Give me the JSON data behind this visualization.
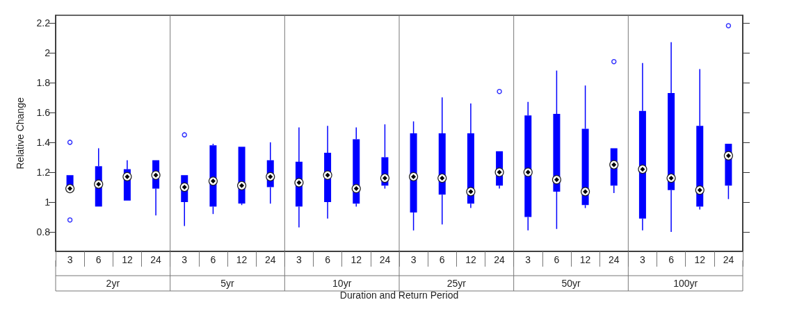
{
  "chart_data": {
    "type": "box",
    "ylabel": "Relative Change",
    "xlabel": "Duration and Return Period",
    "categories": [
      "3",
      "6",
      "12",
      "24",
      "3",
      "6",
      "12",
      "24",
      "3",
      "6",
      "12",
      "24",
      "3",
      "6",
      "12",
      "24",
      "3",
      "6",
      "12",
      "24",
      "3",
      "6",
      "12",
      "24"
    ],
    "annotations": [
      "2yr",
      "5yr",
      "10yr",
      "25yr",
      "50yr",
      "100yr"
    ],
    "ylim": [
      0.67,
      2.25
    ],
    "yticks": [
      0.8,
      1,
      1.2,
      1.4,
      1.6,
      1.8,
      2,
      2.2
    ],
    "grid": false,
    "series": [
      {
        "color": "#0000ff",
        "boxes": [
          {
            "low": 1.08,
            "q1": 1.08,
            "median": 1.09,
            "q3": 1.18,
            "high": 1.18,
            "outliers": [
              1.4,
              0.88
            ]
          },
          {
            "low": 0.97,
            "q1": 0.97,
            "median": 1.12,
            "q3": 1.24,
            "high": 1.36
          },
          {
            "low": 1.01,
            "q1": 1.01,
            "median": 1.17,
            "q3": 1.22,
            "high": 1.28
          },
          {
            "low": 0.91,
            "q1": 1.09,
            "median": 1.18,
            "q3": 1.28,
            "high": 1.28
          },
          {
            "low": 0.84,
            "q1": 1.0,
            "median": 1.1,
            "q3": 1.18,
            "high": 1.18,
            "outliers": [
              1.45
            ]
          },
          {
            "low": 0.92,
            "q1": 0.97,
            "median": 1.14,
            "q3": 1.38,
            "high": 1.39
          },
          {
            "low": 0.98,
            "q1": 0.99,
            "median": 1.11,
            "q3": 1.37,
            "high": 1.37
          },
          {
            "low": 0.99,
            "q1": 1.1,
            "median": 1.17,
            "q3": 1.28,
            "high": 1.4
          },
          {
            "low": 0.83,
            "q1": 0.97,
            "median": 1.13,
            "q3": 1.27,
            "high": 1.5
          },
          {
            "low": 0.89,
            "q1": 1.0,
            "median": 1.18,
            "q3": 1.33,
            "high": 1.51
          },
          {
            "low": 0.97,
            "q1": 0.99,
            "median": 1.09,
            "q3": 1.42,
            "high": 1.5
          },
          {
            "low": 1.09,
            "q1": 1.11,
            "median": 1.16,
            "q3": 1.3,
            "high": 1.52
          },
          {
            "low": 0.81,
            "q1": 0.93,
            "median": 1.17,
            "q3": 1.46,
            "high": 1.54
          },
          {
            "low": 0.85,
            "q1": 1.05,
            "median": 1.16,
            "q3": 1.46,
            "high": 1.7
          },
          {
            "low": 0.96,
            "q1": 0.99,
            "median": 1.07,
            "q3": 1.46,
            "high": 1.66
          },
          {
            "low": 1.09,
            "q1": 1.11,
            "median": 1.2,
            "q3": 1.34,
            "high": 1.34,
            "outliers": [
              1.74
            ]
          },
          {
            "low": 0.81,
            "q1": 0.9,
            "median": 1.2,
            "q3": 1.58,
            "high": 1.67
          },
          {
            "low": 0.82,
            "q1": 1.07,
            "median": 1.15,
            "q3": 1.59,
            "high": 1.88
          },
          {
            "low": 0.96,
            "q1": 0.98,
            "median": 1.07,
            "q3": 1.49,
            "high": 1.78
          },
          {
            "low": 1.06,
            "q1": 1.11,
            "median": 1.25,
            "q3": 1.36,
            "high": 1.36,
            "outliers": [
              1.94
            ]
          },
          {
            "low": 0.81,
            "q1": 0.89,
            "median": 1.22,
            "q3": 1.61,
            "high": 1.93
          },
          {
            "low": 0.8,
            "q1": 1.08,
            "median": 1.16,
            "q3": 1.73,
            "high": 2.07
          },
          {
            "low": 0.95,
            "q1": 0.97,
            "median": 1.08,
            "q3": 1.51,
            "high": 1.89
          },
          {
            "low": 1.02,
            "q1": 1.11,
            "median": 1.31,
            "q3": 1.39,
            "high": 1.39,
            "outliers": [
              2.18
            ]
          }
        ]
      }
    ]
  }
}
